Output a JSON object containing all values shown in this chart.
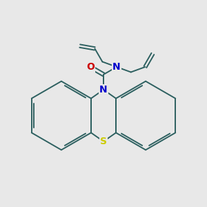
{
  "background_color": "#e8e8e8",
  "bond_color": "#2d6060",
  "N_color": "#0000cc",
  "O_color": "#cc0000",
  "S_color": "#cccc00",
  "figsize": [
    3.0,
    3.0
  ],
  "dpi": 100,
  "lw": 1.4,
  "bl": 22,
  "phN": [
    150,
    170
  ],
  "phS": [
    150,
    95
  ]
}
